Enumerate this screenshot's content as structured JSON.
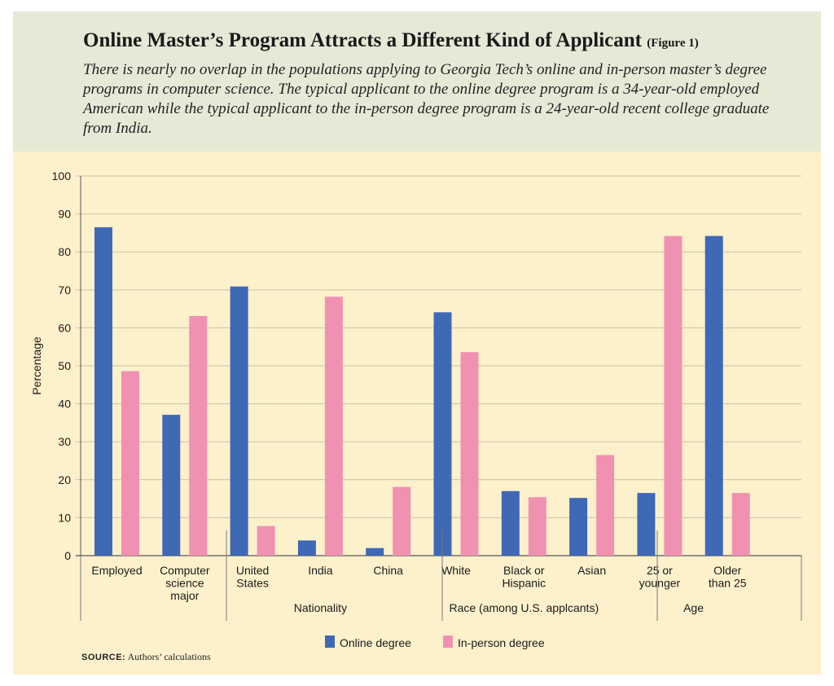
{
  "header": {
    "title": "Online Master’s Program Attracts a Different Kind of Applicant",
    "figure_label": "(Figure 1)",
    "subtitle": "There is nearly no overlap in the populations applying to Georgia Tech’s online and in-person master’s degree programs in computer science. The typical applicant to the online degree program is a 34-year-old employed American while the typical applicant to the in-person degree program is a 24-year-old recent college graduate from India."
  },
  "source": {
    "label": "SOURCE:",
    "text": "Authors’ calculations"
  },
  "colors": {
    "online": "#3f68b5",
    "in_person": "#f091b2",
    "grid": "#c8c2a8"
  },
  "chart_data": {
    "type": "bar",
    "ylabel": "Percentage",
    "ylim": [
      0,
      100
    ],
    "yticks": [
      0,
      10,
      20,
      30,
      40,
      50,
      60,
      70,
      80,
      90,
      100
    ],
    "grid": true,
    "legend_position": "bottom",
    "categories": [
      {
        "label": [
          "Employed"
        ],
        "online": 86.5,
        "in_person": 48.6
      },
      {
        "label": [
          "Computer",
          "science",
          "major"
        ],
        "online": 37.1,
        "in_person": 63.1
      },
      {
        "label": [
          "United",
          "States"
        ],
        "online": 70.9,
        "in_person": 7.8
      },
      {
        "label": [
          "India"
        ],
        "online": 4.0,
        "in_person": 68.2
      },
      {
        "label": [
          "China"
        ],
        "online": 2.0,
        "in_person": 18.1
      },
      {
        "label": [
          "White"
        ],
        "online": 64.1,
        "in_person": 53.6
      },
      {
        "label": [
          "Black or",
          "Hispanic"
        ],
        "online": 17.0,
        "in_person": 15.4
      },
      {
        "label": [
          "Asian"
        ],
        "online": 15.2,
        "in_person": 26.5
      },
      {
        "label": [
          "25 or",
          "younger"
        ],
        "online": 16.5,
        "in_person": 84.2
      },
      {
        "label": [
          "Older",
          "than 25"
        ],
        "online": 84.2,
        "in_person": 16.5
      }
    ],
    "groups": [
      {
        "name": "",
        "from": 0,
        "to": 1
      },
      {
        "name": "Nationality",
        "from": 2,
        "to": 4
      },
      {
        "name": "Race (among U.S. applcants)",
        "from": 5,
        "to": 7
      },
      {
        "name": "Age",
        "from": 8,
        "to": 9
      }
    ],
    "series": [
      {
        "name": "Online degree",
        "key": "online"
      },
      {
        "name": "In-person degree",
        "key": "in_person"
      }
    ]
  }
}
